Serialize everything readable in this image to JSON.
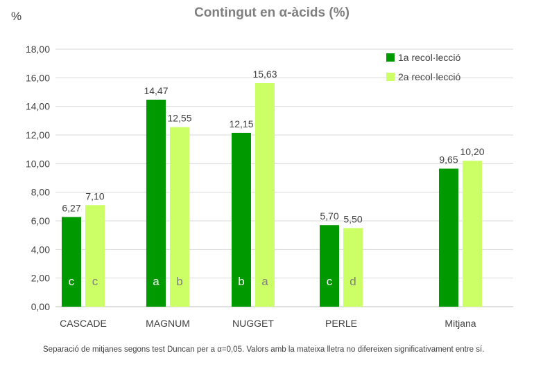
{
  "chart_data": {
    "type": "bar",
    "title": "Contingut en α-àcids (%)",
    "ylabel": "%",
    "xlabel": "",
    "ylim": [
      0,
      18
    ],
    "yticks": [
      "0,00",
      "2,00",
      "4,00",
      "6,00",
      "8,00",
      "10,00",
      "12,00",
      "14,00",
      "16,00",
      "18,00"
    ],
    "grid": true,
    "legend_position": "top-right",
    "categories": [
      "CASCADE",
      "MAGNUM",
      "NUGGET",
      "PERLE",
      "Mitjana"
    ],
    "series": [
      {
        "name": "1a recol·lecció",
        "color": "#009900",
        "values": [
          6.27,
          14.47,
          12.15,
          5.7,
          9.65
        ],
        "labels": [
          "6,27",
          "14,47",
          "12,15",
          "5,70",
          "9,65"
        ],
        "letters": [
          "c",
          "a",
          "b",
          "c",
          ""
        ]
      },
      {
        "name": "2a recol·lecció",
        "color": "#ccff66",
        "values": [
          7.1,
          12.55,
          15.63,
          5.5,
          10.2
        ],
        "labels": [
          "7,10",
          "12,55",
          "15,63",
          "5,50",
          "10,20"
        ],
        "letters": [
          "c",
          "b",
          "a",
          "d",
          ""
        ]
      }
    ]
  },
  "footnote": "Separació de mitjanes segons test Duncan per a α=0,05. Valors amb la mateixa lletra no difereixen significativament entre sí."
}
